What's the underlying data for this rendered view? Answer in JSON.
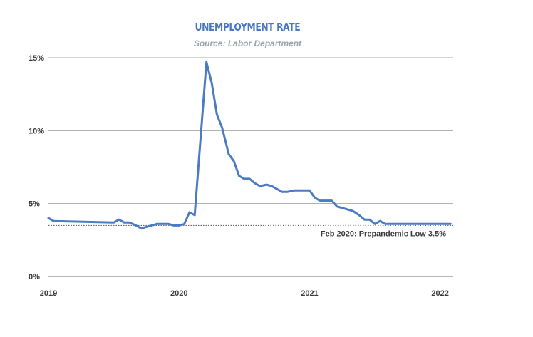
{
  "chart_data": {
    "type": "line",
    "title": "UNEMPLOYMENT RATE",
    "subtitle": "Source: Labor Department",
    "xlabel": "",
    "ylabel": "",
    "xlim": [
      2019.0,
      2022.1
    ],
    "ylim": [
      0,
      15
    ],
    "y_ticks": [
      0,
      5,
      10,
      15
    ],
    "y_tick_labels": [
      "0%",
      "5%",
      "10%",
      "15%"
    ],
    "x_ticks": [
      2019,
      2020,
      2021,
      2022
    ],
    "x_tick_labels": [
      "2019",
      "2020",
      "2021",
      "2022"
    ],
    "grid": true,
    "line_color": "#4a7bc4",
    "reference_line": {
      "value": 3.5,
      "label": "Feb 2020: Prepandemic Low 3.5%"
    },
    "series": [
      {
        "name": "Unemployment rate",
        "x": [
          2019.0,
          2019.04,
          2019.5,
          2019.54,
          2019.58,
          2019.62,
          2019.67,
          2019.71,
          2019.75,
          2019.79,
          2019.83,
          2019.88,
          2019.92,
          2019.96,
          2020.0,
          2020.04,
          2020.08,
          2020.12,
          2020.21,
          2020.25,
          2020.29,
          2020.33,
          2020.38,
          2020.42,
          2020.46,
          2020.5,
          2020.54,
          2020.58,
          2020.62,
          2020.67,
          2020.71,
          2020.75,
          2020.79,
          2020.83,
          2020.88,
          2020.92,
          2020.96,
          2021.0,
          2021.04,
          2021.08,
          2021.12,
          2021.17,
          2021.21,
          2021.25,
          2021.29,
          2021.33,
          2021.38,
          2021.42,
          2021.46,
          2021.5,
          2021.54,
          2021.58,
          2021.62,
          2021.67,
          2021.71,
          2021.75,
          2021.79,
          2021.83,
          2021.88,
          2021.92,
          2021.96,
          2022.0,
          2022.04,
          2022.08
        ],
        "values": [
          4.0,
          3.8,
          3.7,
          3.9,
          3.7,
          3.7,
          3.5,
          3.3,
          3.4,
          3.5,
          3.6,
          3.6,
          3.6,
          3.5,
          3.5,
          3.6,
          4.4,
          4.2,
          14.7,
          13.3,
          11.1,
          10.2,
          8.4,
          7.9,
          6.9,
          6.7,
          6.7,
          6.4,
          6.2,
          6.3,
          6.2,
          6.0,
          5.8,
          5.8,
          5.9,
          5.9,
          5.9,
          5.9,
          5.4,
          5.2,
          5.2,
          5.2,
          4.8,
          4.7,
          4.6,
          4.5,
          4.2,
          3.9,
          3.9,
          3.6,
          3.8,
          3.6,
          3.6,
          3.6,
          3.6,
          3.6,
          3.6,
          3.6,
          3.6,
          3.6,
          3.6,
          3.6,
          3.6,
          3.6
        ]
      }
    ]
  }
}
